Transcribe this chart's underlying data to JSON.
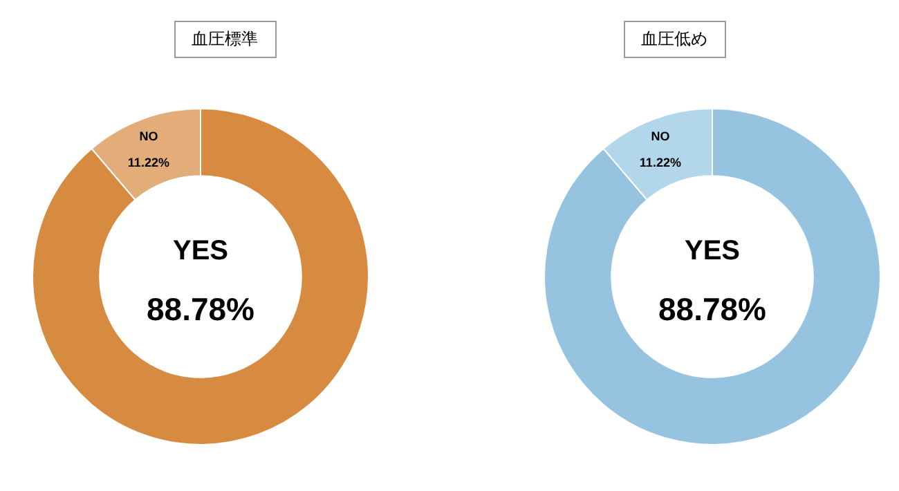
{
  "chart_data": [
    {
      "type": "donut",
      "title": "血圧標準",
      "categories": [
        "YES",
        "NO"
      ],
      "values": [
        88.78,
        11.22
      ],
      "colors": [
        "#d68b41",
        "#e2ad78"
      ],
      "value_labels": [
        "88.78%",
        "11.22%"
      ]
    },
    {
      "type": "donut",
      "title": "血圧低め",
      "categories": [
        "YES",
        "NO"
      ],
      "values": [
        88.78,
        11.22
      ],
      "colors": [
        "#96c3e0",
        "#b2d7ea"
      ],
      "value_labels": [
        "88.78%",
        "11.22%"
      ]
    }
  ]
}
